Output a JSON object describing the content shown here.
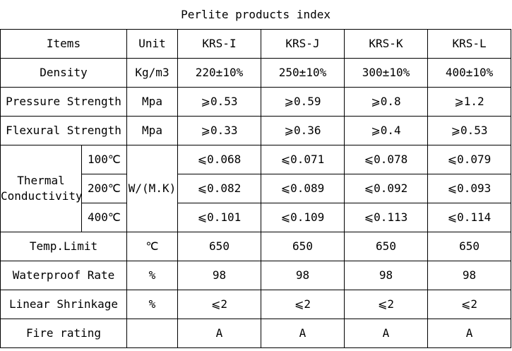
{
  "title": "Perlite products index",
  "header": {
    "items": "Items",
    "unit": "Unit",
    "products": [
      "KRS-I",
      "KRS-J",
      "KRS-K",
      "KRS-L"
    ]
  },
  "rows": {
    "density": {
      "label": "Density",
      "unit": "Kg/m3",
      "values": [
        "220±10%",
        "250±10%",
        "300±10%",
        "400±10%"
      ]
    },
    "pressure": {
      "label": "Pressure Strength",
      "unit": "Mpa",
      "values": [
        "⩾0.53",
        "⩾0.59",
        "⩾0.8",
        "⩾1.2"
      ]
    },
    "flexural": {
      "label": "Flexural Strength",
      "unit": "Mpa",
      "values": [
        "⩾0.33",
        "⩾0.36",
        "⩾0.4",
        "⩾0.53"
      ]
    },
    "thermal": {
      "label_line1": "Thermal",
      "label_line2": "Conductivity",
      "unit": "W/(M.K)",
      "sub": [
        {
          "temp": "100℃",
          "values": [
            "⩽0.068",
            "⩽0.071",
            "⩽0.078",
            "⩽0.079"
          ]
        },
        {
          "temp": "200℃",
          "values": [
            "⩽0.082",
            "⩽0.089",
            "⩽0.092",
            "⩽0.093"
          ]
        },
        {
          "temp": "400℃",
          "values": [
            "⩽0.101",
            "⩽0.109",
            "⩽0.113",
            "⩽0.114"
          ]
        }
      ]
    },
    "temp_limit": {
      "label": "Temp.Limit",
      "unit": "℃",
      "values": [
        "650",
        "650",
        "650",
        "650"
      ]
    },
    "waterproof": {
      "label": "Waterproof Rate",
      "unit": "%",
      "values": [
        "98",
        "98",
        "98",
        "98"
      ]
    },
    "shrinkage": {
      "label": "Linear Shrinkage",
      "unit": "%",
      "values": [
        "⩽2",
        "⩽2",
        "⩽2",
        "⩽2"
      ]
    },
    "fire": {
      "label": "Fire rating",
      "unit": "",
      "values": [
        "A",
        "A",
        "A",
        "A"
      ]
    }
  }
}
